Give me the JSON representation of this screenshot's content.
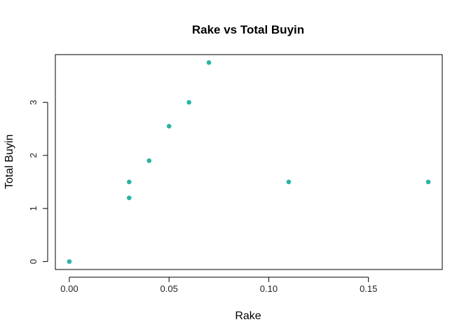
{
  "chart_data": {
    "type": "scatter",
    "title": "Rake vs Total Buyin",
    "xlabel": "Rake",
    "ylabel": "Total Buyin",
    "xlim": [
      -0.007,
      0.187
    ],
    "ylim": [
      -0.15,
      3.9
    ],
    "xticks": [
      0.0,
      0.05,
      0.1,
      0.15
    ],
    "xtick_labels": [
      "0.00",
      "0.05",
      "0.10",
      "0.15"
    ],
    "yticks": [
      0,
      1,
      2,
      3
    ],
    "ytick_labels": [
      "0",
      "1",
      "2",
      "3"
    ],
    "grid": false,
    "point_color": "#2ab3a6",
    "points": [
      {
        "x": 0.0,
        "y": 0.0
      },
      {
        "x": 0.03,
        "y": 1.5
      },
      {
        "x": 0.03,
        "y": 1.2
      },
      {
        "x": 0.04,
        "y": 1.9
      },
      {
        "x": 0.05,
        "y": 2.55
      },
      {
        "x": 0.06,
        "y": 3.0
      },
      {
        "x": 0.07,
        "y": 3.75
      },
      {
        "x": 0.11,
        "y": 1.5
      },
      {
        "x": 0.18,
        "y": 1.5
      }
    ]
  }
}
